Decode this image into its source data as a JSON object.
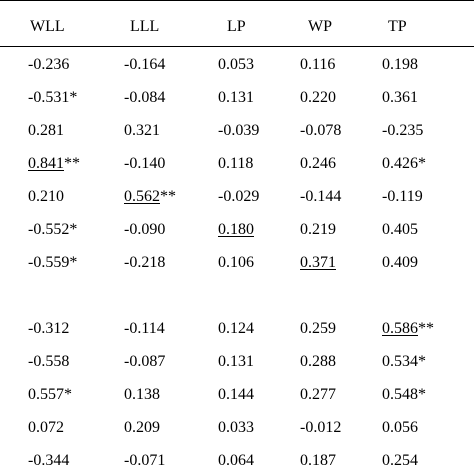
{
  "table": {
    "columns": [
      "WLL",
      "LLL",
      "LP",
      "WP",
      "TP"
    ],
    "rows": [
      {
        "cells": [
          {
            "v": "-0.236",
            "s": ""
          },
          {
            "v": "-0.164",
            "s": ""
          },
          {
            "v": "0.053",
            "s": ""
          },
          {
            "v": "0.116",
            "s": ""
          },
          {
            "v": "0.198",
            "s": ""
          }
        ]
      },
      {
        "cells": [
          {
            "v": "-0.531",
            "s": "*"
          },
          {
            "v": "-0.084",
            "s": ""
          },
          {
            "v": "0.131",
            "s": ""
          },
          {
            "v": "0.220",
            "s": ""
          },
          {
            "v": "0.361",
            "s": ""
          }
        ]
      },
      {
        "cells": [
          {
            "v": "0.281",
            "s": ""
          },
          {
            "v": "0.321",
            "s": ""
          },
          {
            "v": "-0.039",
            "s": ""
          },
          {
            "v": "-0.078",
            "s": ""
          },
          {
            "v": "-0.235",
            "s": ""
          }
        ]
      },
      {
        "cells": [
          {
            "v": "0.841",
            "s": "**",
            "u": true
          },
          {
            "v": "-0.140",
            "s": ""
          },
          {
            "v": "0.118",
            "s": ""
          },
          {
            "v": "0.246",
            "s": ""
          },
          {
            "v": "0.426",
            "s": "*"
          }
        ]
      },
      {
        "cells": [
          {
            "v": "0.210",
            "s": ""
          },
          {
            "v": "0.562",
            "s": "**",
            "u": true
          },
          {
            "v": "-0.029",
            "s": ""
          },
          {
            "v": "-0.144",
            "s": ""
          },
          {
            "v": "-0.119",
            "s": ""
          }
        ]
      },
      {
        "cells": [
          {
            "v": "-0.552",
            "s": "*"
          },
          {
            "v": "-0.090",
            "s": ""
          },
          {
            "v": "0.180",
            "s": "",
            "u": true
          },
          {
            "v": "0.219",
            "s": ""
          },
          {
            "v": "0.405",
            "s": ""
          }
        ]
      },
      {
        "cells": [
          {
            "v": "-0.559",
            "s": "*"
          },
          {
            "v": "-0.218",
            "s": ""
          },
          {
            "v": "0.106",
            "s": ""
          },
          {
            "v": "0.371",
            "s": "",
            "u": true
          },
          {
            "v": "0.409",
            "s": ""
          }
        ]
      },
      {
        "blank": true
      },
      {
        "cells": [
          {
            "v": "-0.312",
            "s": ""
          },
          {
            "v": "-0.114",
            "s": ""
          },
          {
            "v": "0.124",
            "s": ""
          },
          {
            "v": "0.259",
            "s": ""
          },
          {
            "v": "0.586",
            "s": "**",
            "u": true
          }
        ]
      },
      {
        "cells": [
          {
            "v": "-0.558",
            "s": ""
          },
          {
            "v": "-0.087",
            "s": ""
          },
          {
            "v": "0.131",
            "s": ""
          },
          {
            "v": "0.288",
            "s": ""
          },
          {
            "v": "0.534",
            "s": "*"
          }
        ]
      },
      {
        "cells": [
          {
            "v": "0.557",
            "s": "*"
          },
          {
            "v": "0.138",
            "s": ""
          },
          {
            "v": "0.144",
            "s": ""
          },
          {
            "v": "0.277",
            "s": ""
          },
          {
            "v": "0.548",
            "s": "*"
          }
        ]
      },
      {
        "cells": [
          {
            "v": "0.072",
            "s": ""
          },
          {
            "v": "0.209",
            "s": ""
          },
          {
            "v": "0.033",
            "s": ""
          },
          {
            "v": "-0.012",
            "s": ""
          },
          {
            "v": "0.056",
            "s": ""
          }
        ]
      },
      {
        "cells": [
          {
            "v": "-0.344",
            "s": ""
          },
          {
            "v": "-0.071",
            "s": ""
          },
          {
            "v": "0.064",
            "s": ""
          },
          {
            "v": "0.187",
            "s": ""
          },
          {
            "v": "0.254",
            "s": ""
          }
        ]
      }
    ]
  }
}
